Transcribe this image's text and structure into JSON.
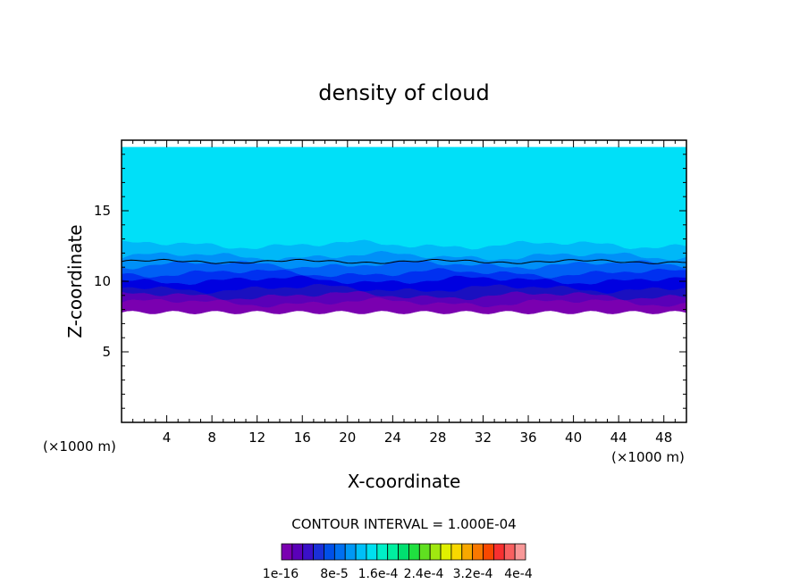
{
  "chart_data": {
    "type": "heatmap",
    "title": "density of cloud",
    "xlabel": "X-coordinate",
    "ylabel": "Z-coordinate",
    "x_unit": "(×1000 m)",
    "x_unit_right": "(×1000 m)",
    "xlim": [
      0,
      50
    ],
    "ylim": [
      0,
      20
    ],
    "x_ticks": [
      4,
      8,
      12,
      16,
      20,
      24,
      28,
      32,
      36,
      40,
      44,
      48
    ],
    "y_ticks": [
      5,
      10,
      15
    ],
    "contour_interval_text": "CONTOUR INTERVAL = 1.000E-04",
    "colorbar": {
      "colors": [
        "#7a00b0",
        "#5a00b8",
        "#3a10c8",
        "#1a30d8",
        "#0050e8",
        "#0070f0",
        "#0098f5",
        "#00c0f8",
        "#00e0f0",
        "#00f0c8",
        "#00f0a0",
        "#00e070",
        "#20e040",
        "#60e020",
        "#a0e810",
        "#e0f000",
        "#f8d800",
        "#f8a800",
        "#f87800",
        "#f84800",
        "#f83030",
        "#f86060",
        "#f89898"
      ],
      "labels": [
        "1e-16",
        "8e-5",
        "1.6e-4",
        "2.4e-4",
        "3.2e-4",
        "4e-4"
      ]
    },
    "levels_shown": [
      {
        "z_bottom": 7.8,
        "z_top": 8.5,
        "color": "#7a00b0"
      },
      {
        "z_bottom": 8.5,
        "z_top": 9.0,
        "color": "#5a00b8"
      },
      {
        "z_bottom": 9.0,
        "z_top": 9.5,
        "color": "#1a10c0"
      },
      {
        "z_bottom": 9.5,
        "z_top": 10.1,
        "color": "#0000e0"
      },
      {
        "z_bottom": 10.1,
        "z_top": 10.6,
        "color": "#0030f0"
      },
      {
        "z_bottom": 10.6,
        "z_top": 11.2,
        "color": "#0060f5"
      },
      {
        "z_bottom": 11.2,
        "z_top": 11.8,
        "color": "#0090f8"
      },
      {
        "z_bottom": 11.8,
        "z_top": 12.6,
        "color": "#00b8f8"
      },
      {
        "z_bottom": 12.6,
        "z_top": 19.5,
        "color": "#00e0f8"
      }
    ],
    "contour_line_z": 11.4
  }
}
